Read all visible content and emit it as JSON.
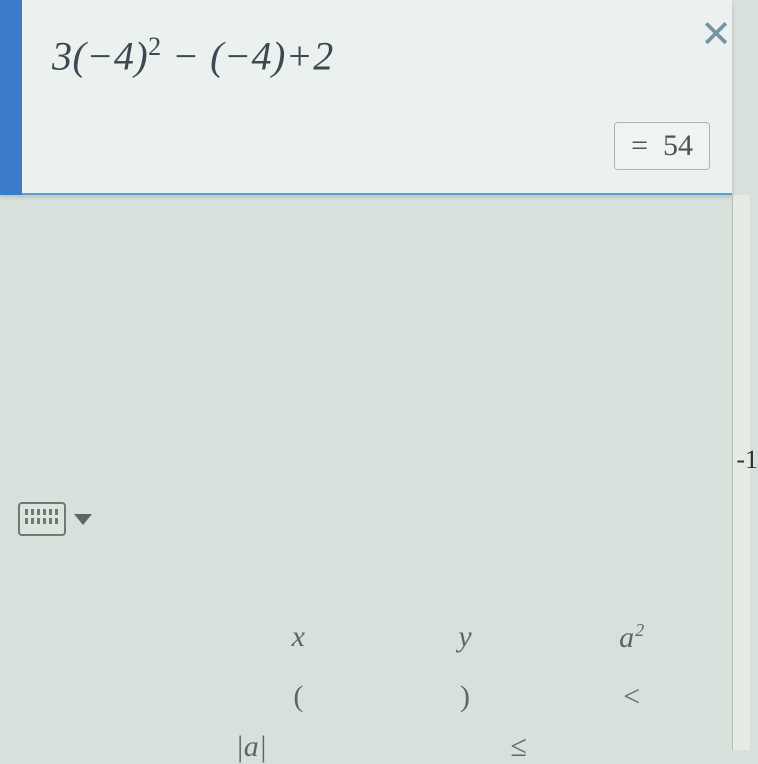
{
  "equation": {
    "display_html": "3(−4)<sup>2</sup> − (−4)+2",
    "close_symbol": "✕",
    "result_prefix": "=",
    "result_value": "54"
  },
  "axis": {
    "right_label": "-1"
  },
  "keypad": {
    "row1": {
      "k1": "x",
      "k2": "y",
      "k3_base": "a",
      "k3_sup": "2"
    },
    "row2": {
      "k1": "(",
      "k2": ")",
      "k3": "<"
    },
    "row3": {
      "k1": "|a|",
      "k3": "≤"
    }
  },
  "colors": {
    "body_bg": "#d8e0db",
    "panel_bg": "#eaf1ee",
    "blue_accent": "#3d7cc9",
    "panel_border": "#5a9fd4",
    "text_primary": "#3b4952",
    "close_color": "#7794a2",
    "result_border": "#a8b8b0",
    "key_color": "#5a6668"
  }
}
